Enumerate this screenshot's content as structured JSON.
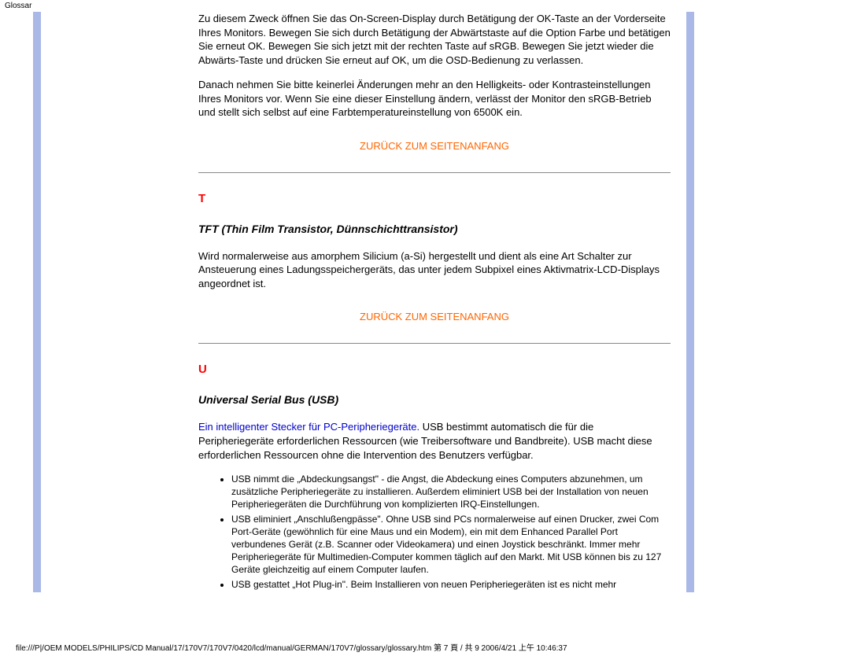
{
  "header": {
    "label": "Glossar"
  },
  "colors": {
    "stripe": "#a9b8e6",
    "link_orange": "#ff6600",
    "letter_red": "#ff0000",
    "inline_link": "#0000cc"
  },
  "content": {
    "srgb_para1": "Zu diesem Zweck öffnen Sie das On-Screen-Display durch Betätigung der OK-Taste an der Vorderseite Ihres Monitors. Bewegen Sie sich durch Betätigung der Abwärtstaste auf die Option Farbe und betätigen Sie erneut OK. Bewegen Sie sich jetzt mit der rechten Taste auf sRGB. Bewegen Sie jetzt wieder die Abwärts-Taste und drücken Sie erneut auf OK, um die OSD-Bedienung zu verlassen.",
    "srgb_para2": "Danach nehmen Sie bitte keinerlei Änderungen mehr an den Helligkeits- oder Kontrasteinstellungen Ihres Monitors vor. Wenn Sie eine dieser Einstellung ändern, verlässt der Monitor den sRGB-Betrieb und stellt sich selbst auf eine Farbtemperatureinstellung von 6500K ein.",
    "top_link": "ZURÜCK ZUM SEITENANFANG",
    "letter_T": "T",
    "tft_title": "TFT (Thin Film Transistor, Dünnschichttransistor)",
    "tft_body": "Wird normalerweise aus amorphem Silicium (a-Si) hergestellt und dient als eine Art Schalter zur Ansteuerung eines Ladungsspeichergeräts, das unter jedem Subpixel eines Aktivmatrix-LCD-Displays angeordnet ist.",
    "letter_U": "U",
    "usb_title": "Universal Serial Bus (USB)",
    "usb_lead_link": "Ein intelligenter Stecker für PC-Peripheriegeräte.",
    "usb_lead_rest": " USB bestimmt automatisch die für die Peripheriegeräte erforderlichen Ressourcen (wie Treibersoftware und Bandbreite). USB macht diese erforderlichen Ressourcen ohne die Intervention des Benutzers verfügbar.",
    "usb_bullets": [
      "USB nimmt die „Abdeckungsangst\" - die Angst, die Abdeckung eines Computers abzunehmen, um zusätzliche Peripheriegeräte zu installieren. Außerdem eliminiert USB bei der Installation von neuen Peripheriegeräten die Durchführung von komplizierten IRQ-Einstellungen.",
      "USB eliminiert „Anschlußengpässe\". Ohne USB sind PCs normalerweise auf einen Drucker, zwei Com Port-Geräte (gewöhnlich für eine Maus und ein Modem), ein mit dem Enhanced Parallel Port verbundenes Gerät (z.B. Scanner oder Videokamera) und einen Joystick beschränkt. Immer mehr Peripheriegeräte für Multimedien-Computer kommen täglich auf den Markt. Mit USB können bis zu 127 Geräte gleichzeitig auf einem Computer laufen.",
      "USB gestattet „Hot Plug-in\". Beim Installieren von neuen Peripheriegeräten ist es nicht mehr"
    ]
  },
  "footer": {
    "path": "file:///P|/OEM MODELS/PHILIPS/CD Manual/17/170V7/170V7/0420/lcd/manual/GERMAN/170V7/glossary/glossary.htm 第 7 頁 / 共 9 2006/4/21 上午 10:46:37"
  }
}
